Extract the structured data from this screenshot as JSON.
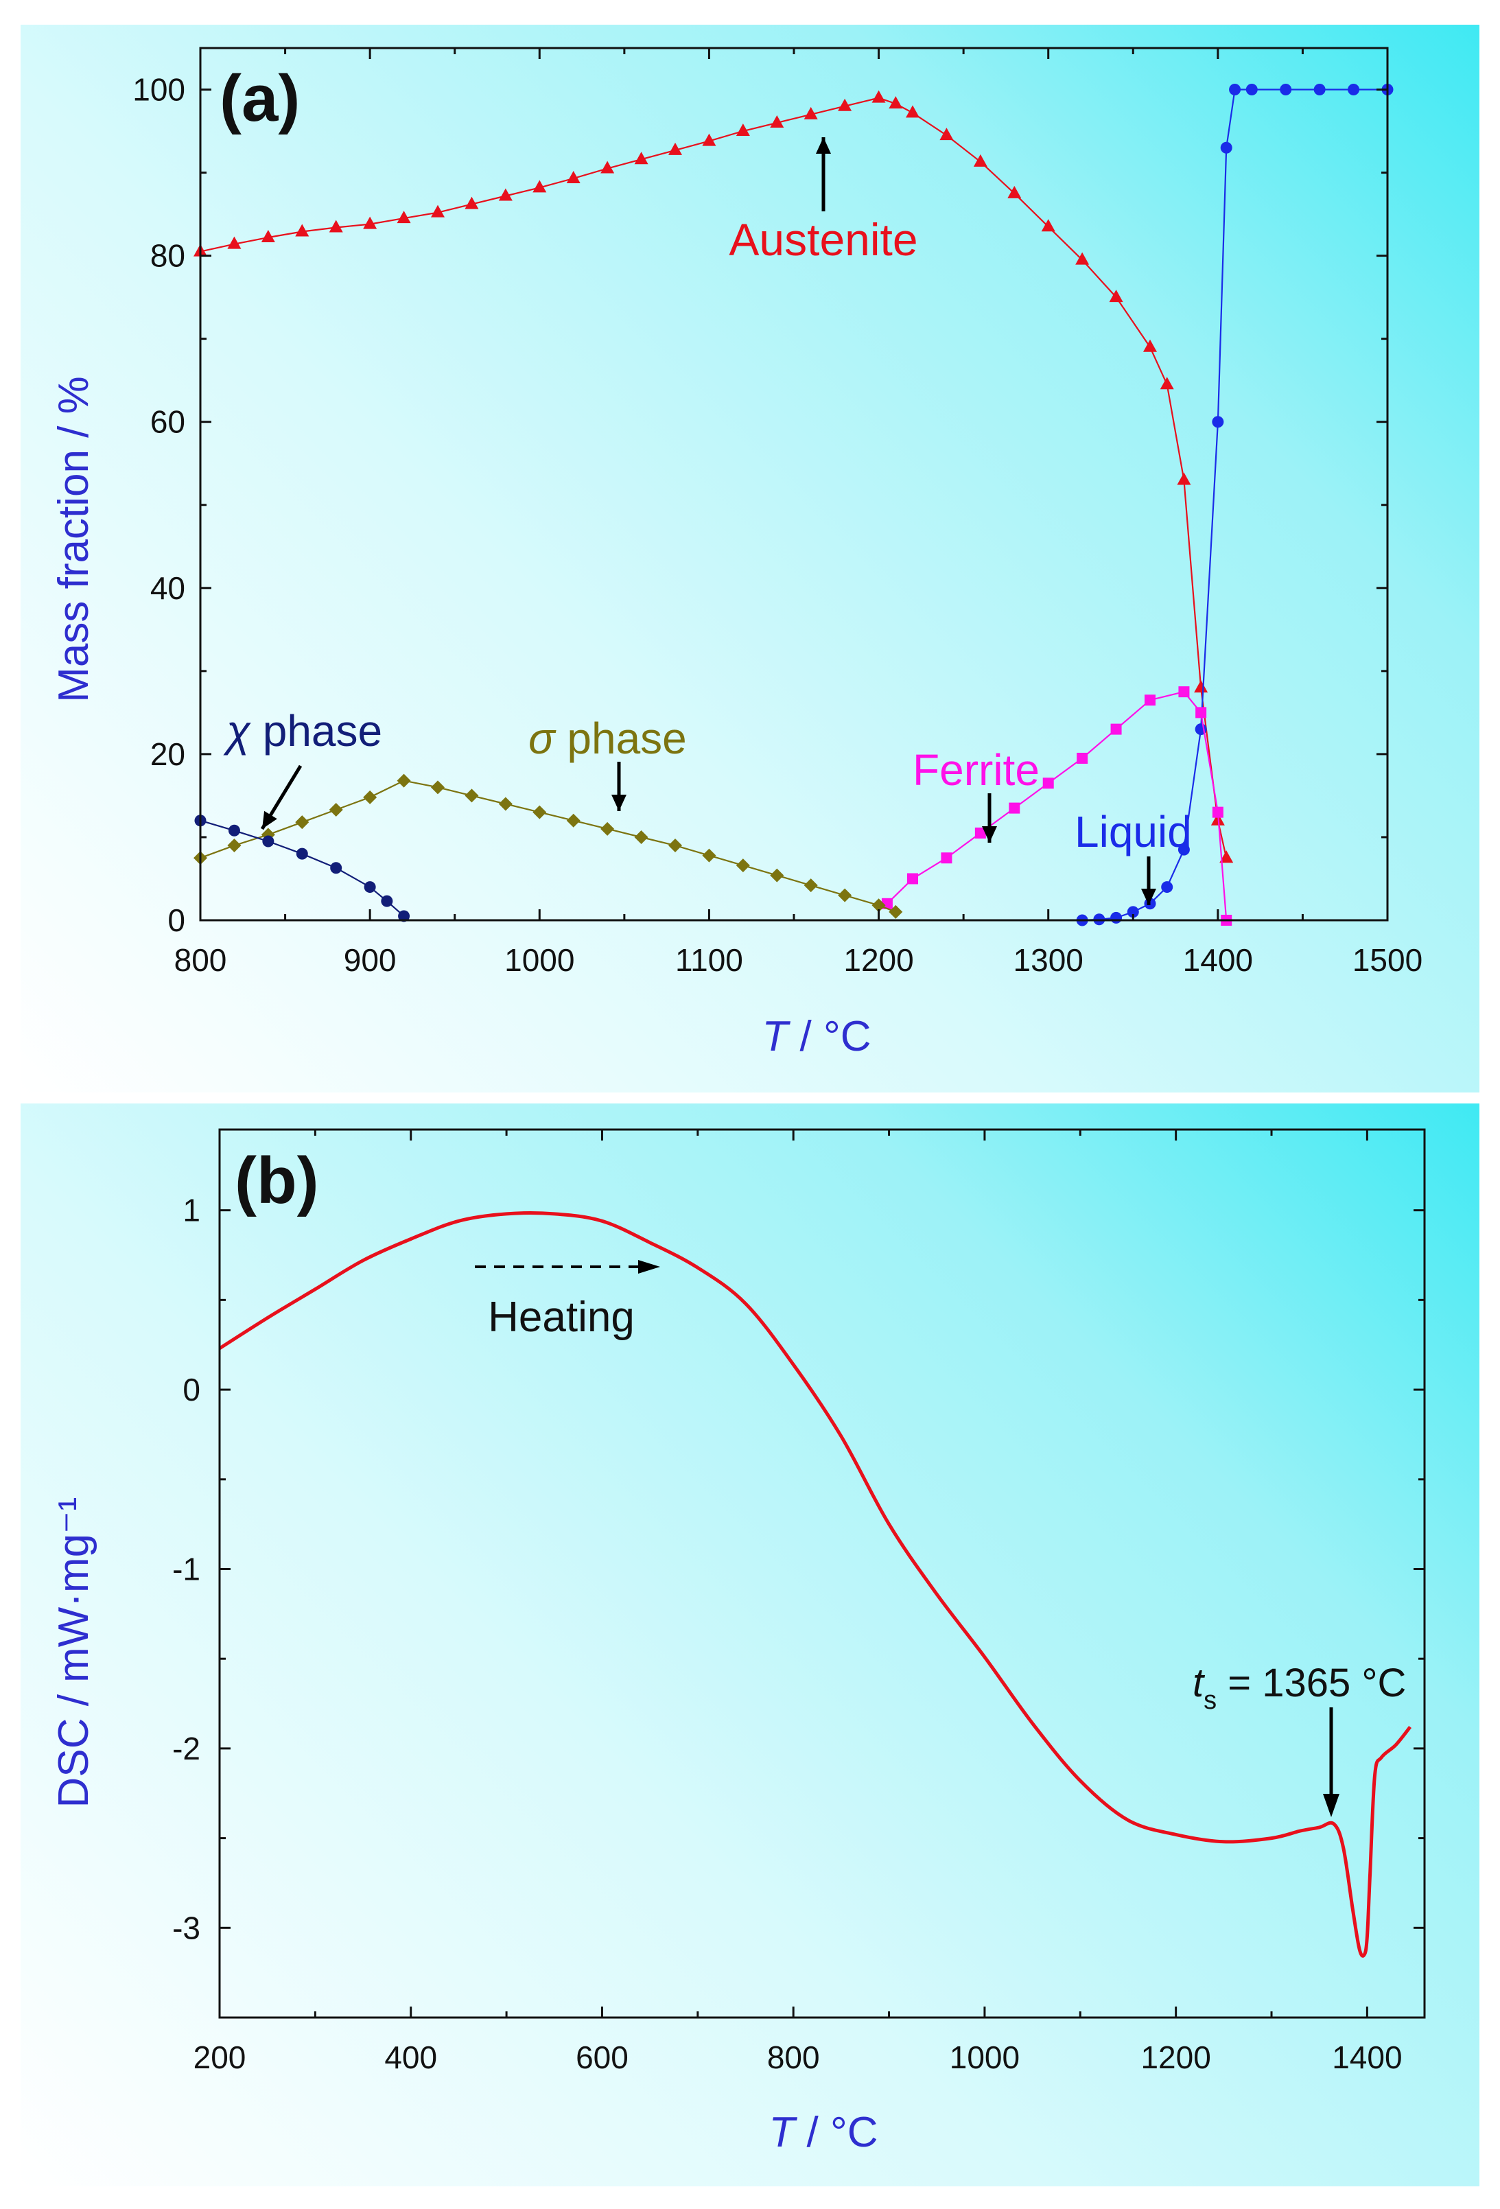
{
  "chart_data": [
    {
      "type": "line",
      "panel_label": "(a)",
      "xlabel": "T / °C",
      "ylabel": "Mass fraction / %",
      "xlim": [
        800,
        1500
      ],
      "ylim": [
        0,
        105
      ],
      "xticks": [
        800,
        900,
        1000,
        1100,
        1200,
        1300,
        1400,
        1500
      ],
      "yticks": [
        0,
        20,
        40,
        60,
        80,
        100
      ],
      "colors": {
        "Austenite": "#e8101c",
        "Liquid": "#1a2ce8",
        "Ferrite": "#ff10e8",
        "sigma": "#7c7410",
        "chi": "#121e78"
      },
      "series": [
        {
          "name": "Austenite",
          "marker": "triangle",
          "x": [
            800,
            820,
            840,
            860,
            880,
            900,
            920,
            940,
            960,
            980,
            1000,
            1020,
            1040,
            1060,
            1080,
            1100,
            1120,
            1140,
            1160,
            1180,
            1200,
            1210,
            1220,
            1240,
            1260,
            1280,
            1300,
            1320,
            1340,
            1360,
            1370,
            1380,
            1390,
            1400,
            1405
          ],
          "y": [
            80.5,
            81.4,
            82.2,
            82.9,
            83.4,
            83.8,
            84.5,
            85.2,
            86.2,
            87.2,
            88.2,
            89.3,
            90.5,
            91.6,
            92.7,
            93.8,
            95.0,
            96.0,
            97.0,
            98.0,
            99.0,
            98.3,
            97.2,
            94.5,
            91.3,
            87.5,
            83.5,
            79.5,
            75.0,
            69.0,
            64.5,
            53.0,
            28.0,
            12.0,
            7.5
          ]
        },
        {
          "name": "Liquid",
          "marker": "circle",
          "x": [
            1320,
            1330,
            1340,
            1350,
            1360,
            1370,
            1380,
            1390,
            1400,
            1405,
            1410,
            1420,
            1440,
            1460,
            1480,
            1500
          ],
          "y": [
            0.0,
            0.1,
            0.3,
            1.0,
            2.0,
            4.0,
            8.5,
            23.0,
            60.0,
            93.0,
            100,
            100,
            100,
            100,
            100,
            100
          ]
        },
        {
          "name": "Ferrite",
          "marker": "square",
          "x": [
            1205,
            1220,
            1240,
            1260,
            1280,
            1300,
            1320,
            1340,
            1360,
            1380,
            1390,
            1400,
            1405
          ],
          "y": [
            2.0,
            5.0,
            7.5,
            10.5,
            13.5,
            16.5,
            19.5,
            23.0,
            26.5,
            27.5,
            25.0,
            13.0,
            0
          ]
        },
        {
          "name": "sigma",
          "marker": "diamond",
          "x": [
            800,
            820,
            840,
            860,
            880,
            900,
            920,
            940,
            960,
            980,
            1000,
            1020,
            1040,
            1060,
            1080,
            1100,
            1120,
            1140,
            1160,
            1180,
            1200,
            1210
          ],
          "y": [
            7.5,
            9.0,
            10.3,
            11.8,
            13.3,
            14.8,
            16.8,
            16.0,
            15.0,
            14.0,
            13.0,
            12.0,
            11.0,
            10.0,
            9.0,
            7.8,
            6.6,
            5.4,
            4.2,
            3.0,
            1.8,
            1.0
          ]
        },
        {
          "name": "chi",
          "marker": "circle",
          "x": [
            800,
            820,
            840,
            860,
            880,
            900,
            910,
            920
          ],
          "y": [
            12.0,
            10.8,
            9.5,
            8.0,
            6.3,
            4.0,
            2.3,
            0.5
          ]
        }
      ],
      "labels": {
        "austenite": "Austenite",
        "chi_symbol": "χ",
        "chi_word": " phase",
        "sigma_symbol": "σ",
        "sigma_word": " phase",
        "ferrite": "Ferrite",
        "liquid": "Liquid"
      }
    },
    {
      "type": "line",
      "panel_label": "(b)",
      "xlabel": "T / °C",
      "ylabel": "DSC / mW·mg⁻¹",
      "xlim": [
        200,
        1460
      ],
      "ylim": [
        -3.5,
        1.45
      ],
      "xticks": [
        200,
        400,
        600,
        800,
        1000,
        1200,
        1400
      ],
      "yticks": [
        1,
        0,
        -1,
        -2,
        -3
      ],
      "color": "#e8101c",
      "series": [
        {
          "name": "DSC",
          "x": [
            200,
            250,
            300,
            350,
            400,
            450,
            500,
            550,
            600,
            650,
            700,
            750,
            800,
            850,
            900,
            950,
            1000,
            1050,
            1100,
            1150,
            1200,
            1250,
            1300,
            1330,
            1350,
            1365,
            1375,
            1385,
            1392,
            1397,
            1400,
            1403,
            1408,
            1415,
            1430,
            1445
          ],
          "y": [
            0.23,
            0.4,
            0.56,
            0.72,
            0.84,
            0.94,
            0.98,
            0.98,
            0.94,
            0.82,
            0.68,
            0.48,
            0.14,
            -0.26,
            -0.75,
            -1.14,
            -1.49,
            -1.86,
            -2.18,
            -2.4,
            -2.48,
            -2.52,
            -2.5,
            -2.46,
            -2.44,
            -2.42,
            -2.55,
            -2.9,
            -3.12,
            -3.15,
            -3.05,
            -2.7,
            -2.15,
            -2.05,
            -1.98,
            -1.88
          ]
        }
      ],
      "labels": {
        "heating": "Heating",
        "ts_symbol": "t",
        "ts_sub": "s",
        "ts_value": " = 1365 °C"
      }
    }
  ]
}
